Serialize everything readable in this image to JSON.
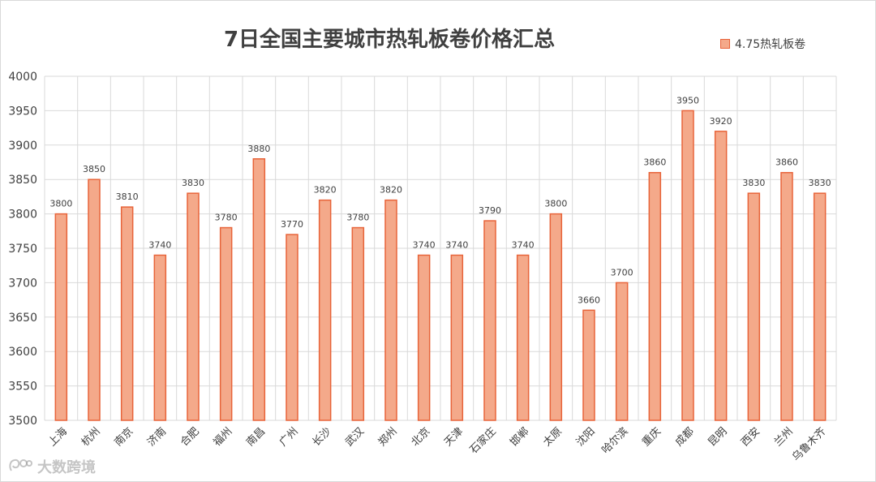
{
  "watermark": "大数跨境",
  "colors": {
    "bar_fill": "#f4a98a",
    "bar_stroke": "#e8643a",
    "grid": "#d9d9d9",
    "text": "#404040"
  },
  "chart_data": {
    "type": "bar",
    "title": "7日全国主要城市热轧板卷价格汇总",
    "xlabel": "",
    "ylabel": "",
    "ylim": [
      3500,
      4000
    ],
    "yticks": [
      3500,
      3550,
      3600,
      3650,
      3700,
      3750,
      3800,
      3850,
      3900,
      3950,
      4000
    ],
    "grid": true,
    "legend_position": "top-right",
    "categories": [
      "上海",
      "杭州",
      "南京",
      "济南",
      "合肥",
      "福州",
      "南昌",
      "广州",
      "长沙",
      "武汉",
      "郑州",
      "北京",
      "天津",
      "石家庄",
      "邯郸",
      "太原",
      "沈阳",
      "哈尔滨",
      "重庆",
      "成都",
      "昆明",
      "西安",
      "兰州",
      "乌鲁木齐"
    ],
    "series": [
      {
        "name": "4.75热轧板卷",
        "values": [
          3800,
          3850,
          3810,
          3740,
          3830,
          3780,
          3880,
          3770,
          3820,
          3780,
          3820,
          3740,
          3740,
          3790,
          3740,
          3800,
          3660,
          3700,
          3860,
          3950,
          3920,
          3830,
          3860,
          3830
        ]
      }
    ]
  }
}
